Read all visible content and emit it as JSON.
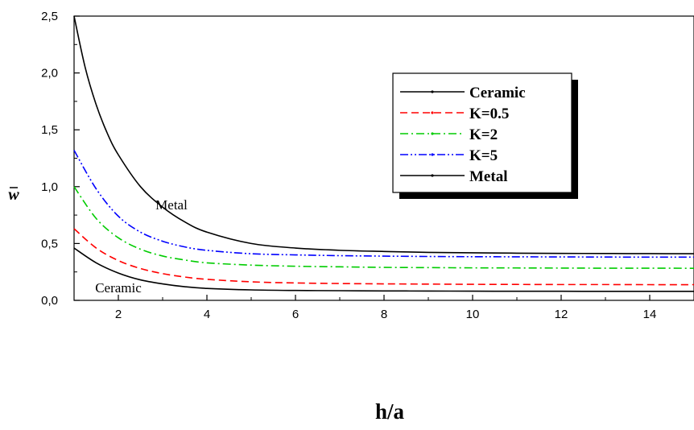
{
  "chart_data": {
    "type": "line",
    "xlabel": "h/a",
    "ylabel": "w",
    "xlim": [
      1,
      15
    ],
    "ylim": [
      0,
      2.5
    ],
    "xticks": [
      2,
      4,
      6,
      8,
      10,
      12,
      14
    ],
    "xtick_labels": [
      "2",
      "4",
      "6",
      "8",
      "10",
      "12",
      "14"
    ],
    "yticks": [
      0,
      0.5,
      1.0,
      1.5,
      2.0,
      2.5
    ],
    "ytick_labels": [
      "0,0",
      "0,5",
      "1,0",
      "1,5",
      "2,0",
      "2,5"
    ],
    "grid": false,
    "legend_position": "top-right",
    "series": [
      {
        "name": "Ceramic",
        "color": "#000000",
        "dash": "solid",
        "x": [
          1,
          1.5,
          2,
          2.5,
          3,
          3.5,
          4,
          5,
          6,
          7,
          8,
          9,
          10,
          11,
          12,
          13,
          14,
          15
        ],
        "values": [
          0.46,
          0.33,
          0.24,
          0.18,
          0.145,
          0.12,
          0.105,
          0.092,
          0.087,
          0.085,
          0.083,
          0.082,
          0.081,
          0.08,
          0.08,
          0.079,
          0.079,
          0.079
        ]
      },
      {
        "name": "K=0.5",
        "color": "#ff0000",
        "dash": "dash",
        "x": [
          1,
          1.5,
          2,
          2.5,
          3,
          3.5,
          4,
          5,
          6,
          7,
          8,
          9,
          10,
          11,
          12,
          13,
          14,
          15
        ],
        "values": [
          0.63,
          0.46,
          0.35,
          0.28,
          0.235,
          0.205,
          0.185,
          0.163,
          0.153,
          0.148,
          0.145,
          0.143,
          0.141,
          0.14,
          0.139,
          0.139,
          0.138,
          0.138
        ]
      },
      {
        "name": "K=2",
        "color": "#00cc00",
        "dash": "dashdot",
        "x": [
          1,
          1.5,
          2,
          2.5,
          3,
          3.5,
          4,
          5,
          6,
          7,
          8,
          9,
          10,
          11,
          12,
          13,
          14,
          15
        ],
        "values": [
          1.0,
          0.72,
          0.55,
          0.45,
          0.39,
          0.355,
          0.33,
          0.31,
          0.3,
          0.295,
          0.29,
          0.288,
          0.286,
          0.285,
          0.284,
          0.283,
          0.283,
          0.282
        ]
      },
      {
        "name": "K=5",
        "color": "#0000ff",
        "dash": "dashdotdot",
        "x": [
          1,
          1.5,
          2,
          2.5,
          3,
          3.5,
          4,
          5,
          6,
          7,
          8,
          9,
          10,
          11,
          12,
          13,
          14,
          15
        ],
        "values": [
          1.32,
          0.98,
          0.74,
          0.6,
          0.52,
          0.47,
          0.44,
          0.41,
          0.4,
          0.393,
          0.389,
          0.386,
          0.384,
          0.383,
          0.382,
          0.381,
          0.38,
          0.38
        ]
      },
      {
        "name": "Metal",
        "color": "#000000",
        "dash": "solid",
        "x": [
          1,
          1.25,
          1.5,
          1.75,
          2,
          2.5,
          3,
          3.5,
          4,
          5,
          6,
          7,
          8,
          9,
          10,
          11,
          12,
          13,
          14,
          15
        ],
        "values": [
          2.5,
          2.05,
          1.72,
          1.47,
          1.28,
          1.0,
          0.82,
          0.69,
          0.6,
          0.5,
          0.46,
          0.44,
          0.43,
          0.422,
          0.418,
          0.415,
          0.413,
          0.412,
          0.411,
          0.41
        ]
      }
    ],
    "annotations": [
      {
        "text": "Metal",
        "x": 3.2,
        "y": 0.8
      },
      {
        "text": "Ceramic",
        "x": 2.0,
        "y": 0.07
      }
    ]
  }
}
